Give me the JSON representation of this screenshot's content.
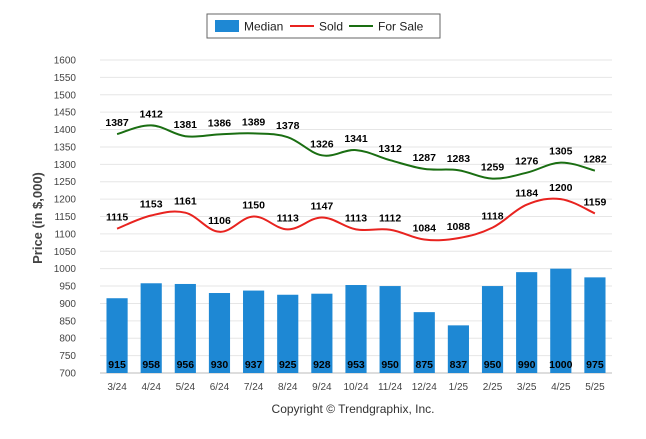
{
  "chart_data": {
    "type": "bar",
    "categories": [
      "3/24",
      "4/24",
      "5/24",
      "6/24",
      "7/24",
      "8/24",
      "9/24",
      "10/24",
      "11/24",
      "12/24",
      "1/25",
      "2/25",
      "3/25",
      "4/25",
      "5/25"
    ],
    "series": [
      {
        "name": "Median",
        "type": "bar",
        "color": "#1e88d4",
        "values": [
          915,
          958,
          956,
          930,
          937,
          925,
          928,
          953,
          950,
          875,
          837,
          950,
          990,
          1000,
          975
        ]
      },
      {
        "name": "Sold",
        "type": "line",
        "color": "#e8231f",
        "values": [
          1115,
          1153,
          1161,
          1106,
          1150,
          1113,
          1147,
          1113,
          1112,
          1084,
          1088,
          1118,
          1184,
          1200,
          1159
        ]
      },
      {
        "name": "For Sale",
        "type": "line",
        "color": "#1a6e12",
        "values": [
          1387,
          1412,
          1381,
          1386,
          1389,
          1378,
          1326,
          1341,
          1312,
          1287,
          1283,
          1259,
          1276,
          1305,
          1282
        ]
      }
    ],
    "ylabel": "Price (in $,000)",
    "ylim": [
      700,
      1600
    ],
    "yticks": [
      700,
      750,
      800,
      850,
      900,
      950,
      1000,
      1050,
      1100,
      1150,
      1200,
      1250,
      1300,
      1350,
      1400,
      1450,
      1500,
      1550,
      1600
    ],
    "grid": true,
    "legend": "top-center"
  },
  "footer": {
    "copyright": "Copyright © Trendgraphix, Inc."
  }
}
